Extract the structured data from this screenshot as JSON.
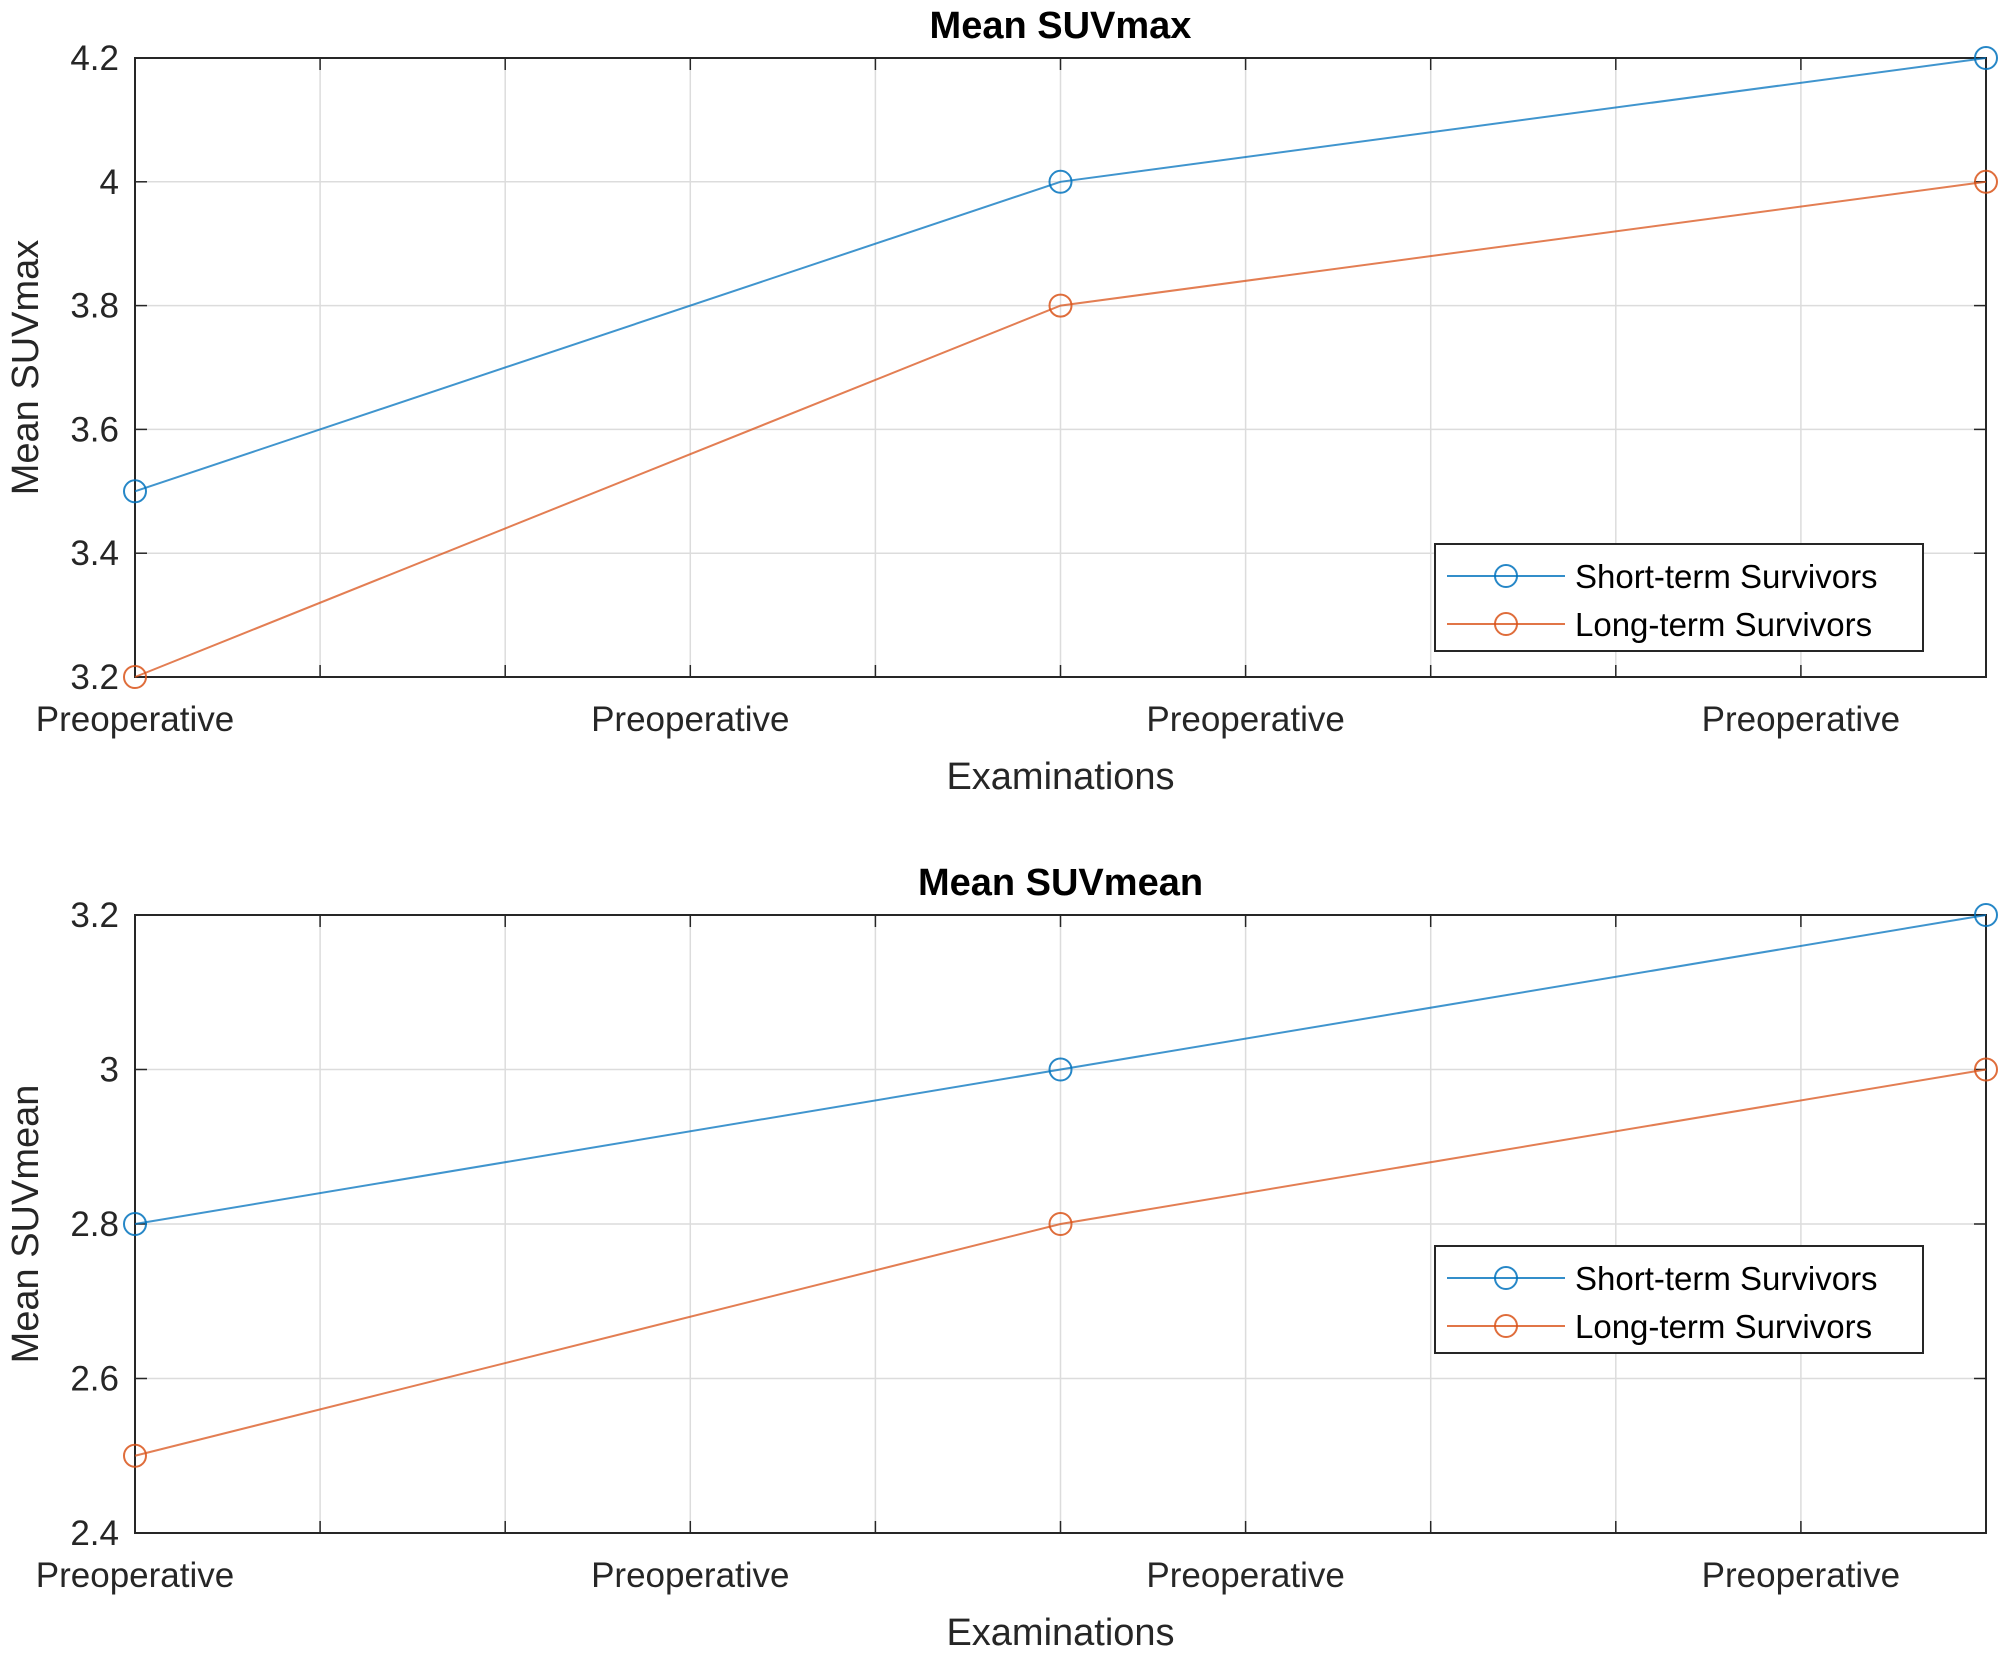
{
  "chart_data": [
    {
      "type": "line",
      "title": "Mean SUVmax",
      "xlabel": "Examinations",
      "ylabel": "Mean SUVmax",
      "x": [
        1,
        2,
        3
      ],
      "xlim": [
        1,
        3
      ],
      "xticks": [
        1,
        1.6,
        2.2,
        2.8
      ],
      "xticklabels": [
        "Preoperative",
        "Preoperative",
        "Preoperative",
        "Preoperative"
      ],
      "ylim": [
        3.2,
        4.2
      ],
      "yticks": [
        3.2,
        3.4,
        3.6,
        3.8,
        4,
        4.2
      ],
      "yticklabels": [
        "3.2",
        "3.4",
        "3.6",
        "3.8",
        "4",
        "4.2"
      ],
      "grid": true,
      "legend_position": "bottom-right",
      "series": [
        {
          "name": "Short-term Survivors",
          "color": "#0072BD",
          "values": [
            3.5,
            4.0,
            4.2
          ]
        },
        {
          "name": "Long-term Survivors",
          "color": "#D95319",
          "values": [
            3.2,
            3.8,
            4.0
          ]
        }
      ]
    },
    {
      "type": "line",
      "title": "Mean SUVmean",
      "xlabel": "Examinations",
      "ylabel": "Mean SUVmean",
      "x": [
        1,
        2,
        3
      ],
      "xlim": [
        1,
        3
      ],
      "xticks": [
        1,
        1.6,
        2.2,
        2.8
      ],
      "xticklabels": [
        "Preoperative",
        "Preoperative",
        "Preoperative",
        "Preoperative"
      ],
      "ylim": [
        2.4,
        3.2
      ],
      "yticks": [
        2.4,
        2.6,
        2.8,
        3,
        3.2
      ],
      "yticklabels": [
        "2.4",
        "2.6",
        "2.8",
        "3",
        "3.2"
      ],
      "grid": true,
      "legend_position": "right",
      "series": [
        {
          "name": "Short-term Survivors",
          "color": "#0072BD",
          "values": [
            2.8,
            3.0,
            3.2
          ]
        },
        {
          "name": "Long-term Survivors",
          "color": "#D95319",
          "values": [
            2.5,
            2.8,
            3.0
          ]
        }
      ]
    }
  ]
}
